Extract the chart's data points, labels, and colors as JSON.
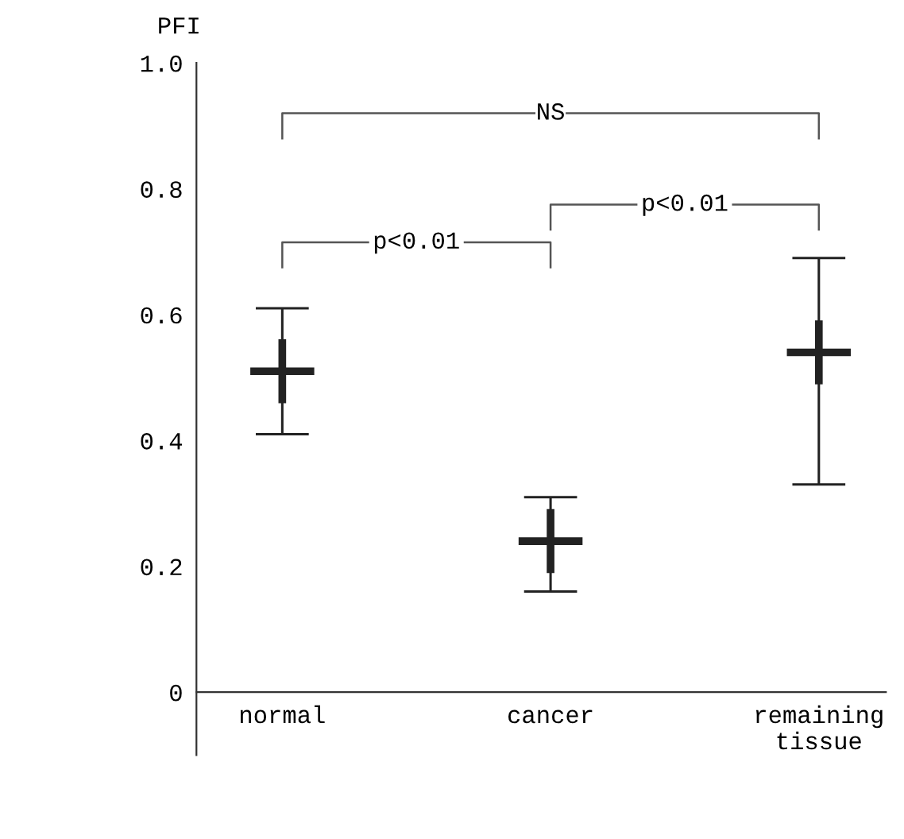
{
  "chart_data": {
    "type": "scatter",
    "ylabel": "PFI",
    "categories": [
      "normal",
      "cancer",
      "remaining\ntissue"
    ],
    "values": [
      0.51,
      0.24,
      0.54
    ],
    "errors": [
      [
        0.41,
        0.61
      ],
      [
        0.16,
        0.31
      ],
      [
        0.33,
        0.69
      ]
    ],
    "color": "#222222",
    "marker": "cross",
    "ylim": [
      -0.1,
      1.0
    ],
    "yticks": [
      0,
      {
        "value": 0.2,
        "label": "0.2"
      },
      {
        "value": 0.4,
        "label": "0.4"
      },
      {
        "value": 0.6,
        "label": "0.6"
      },
      {
        "value": 0.8,
        "label": "0.8"
      },
      {
        "value": 1.0,
        "label": "1.0"
      }
    ],
    "grid": false,
    "annotations": [
      "NS",
      "p<0.01",
      "p<0.01"
    ]
  }
}
